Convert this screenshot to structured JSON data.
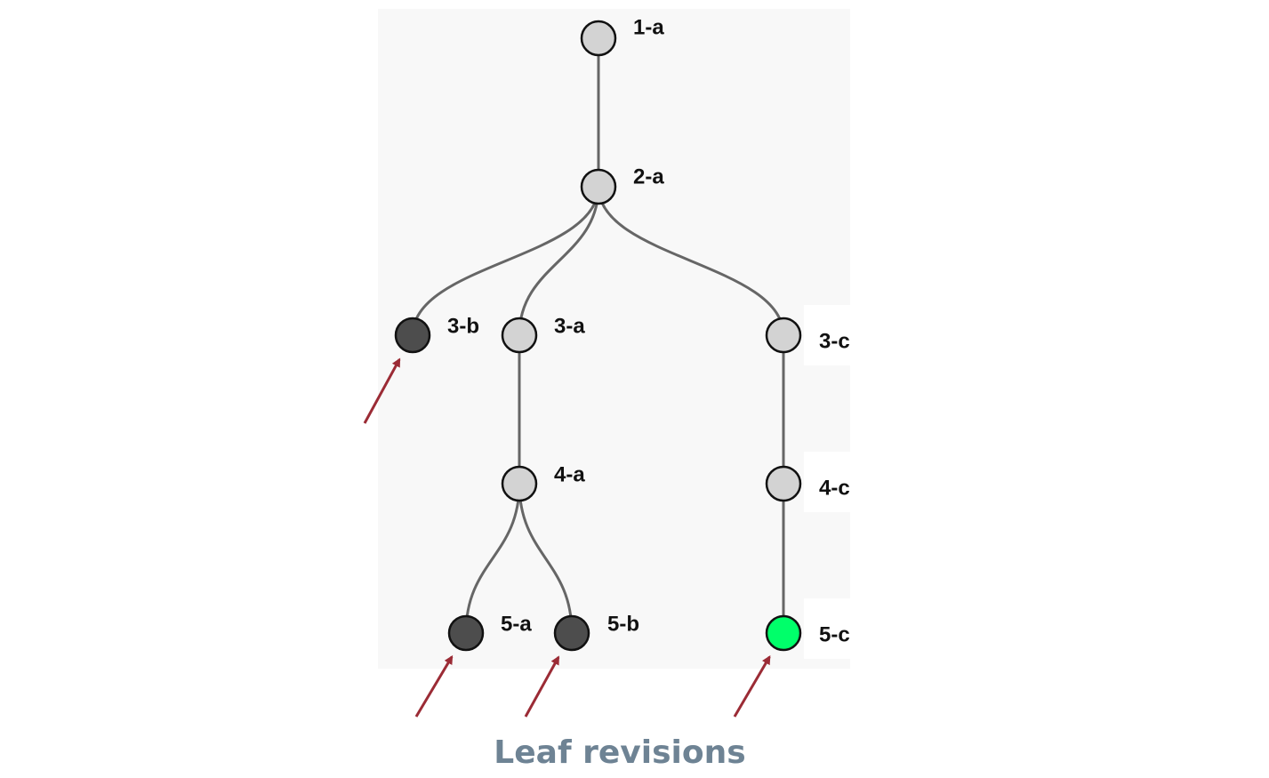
{
  "colors": {
    "panel_background": "#f8f8f8",
    "edge": "#666666",
    "node_default_fill": "#d3d3d3",
    "node_leaf_fill": "#4d4d4d",
    "node_winner_fill": "#00ff6a",
    "node_stroke": "#111111",
    "arrow": "#9b2b35",
    "caption": "#6e8394"
  },
  "tree": {
    "nodes": [
      {
        "id": "1-a",
        "label": "1-a",
        "kind": "default"
      },
      {
        "id": "2-a",
        "label": "2-a",
        "kind": "default"
      },
      {
        "id": "3-b",
        "label": "3-b",
        "kind": "leaf"
      },
      {
        "id": "3-a",
        "label": "3-a",
        "kind": "default"
      },
      {
        "id": "3-c",
        "label": "3-c",
        "kind": "default"
      },
      {
        "id": "4-a",
        "label": "4-a",
        "kind": "default"
      },
      {
        "id": "4-c",
        "label": "4-c",
        "kind": "default"
      },
      {
        "id": "5-a",
        "label": "5-a",
        "kind": "leaf"
      },
      {
        "id": "5-b",
        "label": "5-b",
        "kind": "leaf"
      },
      {
        "id": "5-c",
        "label": "5-c",
        "kind": "winner"
      }
    ],
    "edges": [
      {
        "from": "1-a",
        "to": "2-a"
      },
      {
        "from": "2-a",
        "to": "3-b"
      },
      {
        "from": "2-a",
        "to": "3-a"
      },
      {
        "from": "2-a",
        "to": "3-c"
      },
      {
        "from": "3-a",
        "to": "4-a"
      },
      {
        "from": "3-c",
        "to": "4-c"
      },
      {
        "from": "4-a",
        "to": "5-a"
      },
      {
        "from": "4-a",
        "to": "5-b"
      },
      {
        "from": "4-c",
        "to": "5-c"
      }
    ],
    "arrow_targets": [
      "3-b",
      "5-a",
      "5-b",
      "5-c"
    ]
  },
  "caption": "Leaf revisions"
}
